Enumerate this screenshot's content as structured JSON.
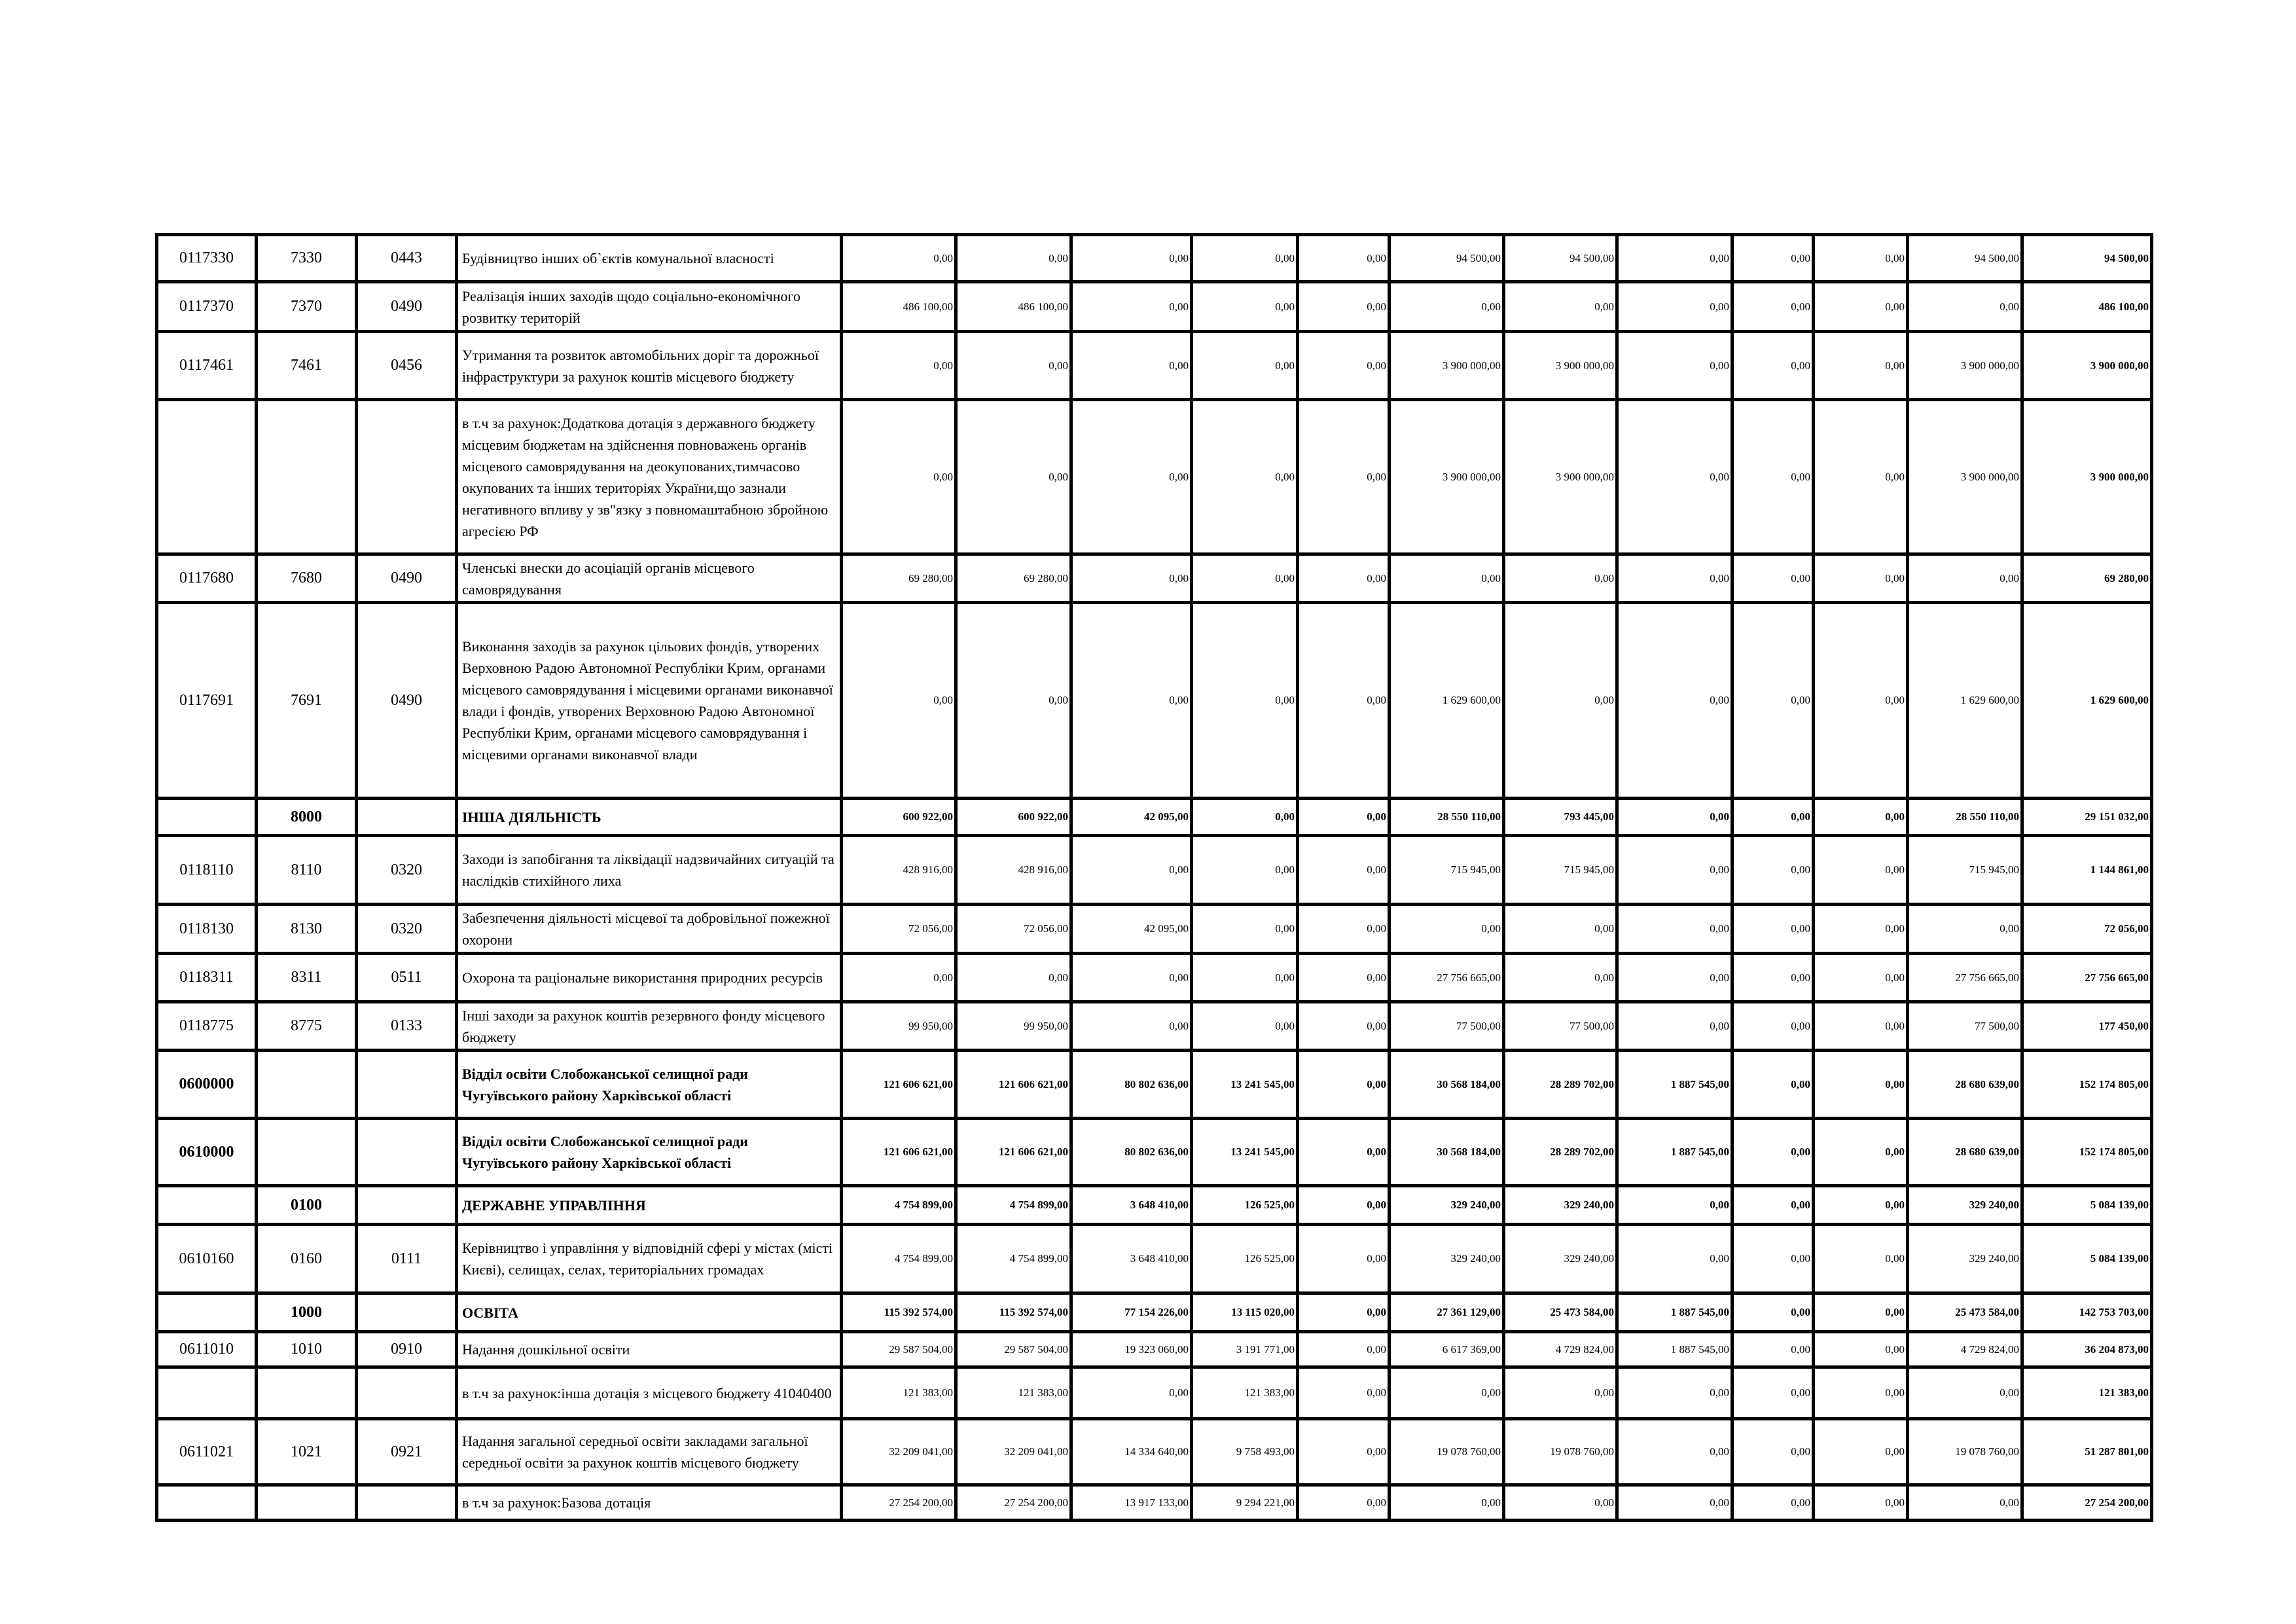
{
  "table": {
    "rows": [
      {
        "bold": false,
        "cells": [
          "0117330",
          "7330",
          "0443",
          "Будівництво інших об`єктів комунальної власності",
          "0,00",
          "0,00",
          "0,00",
          "0,00",
          "0,00",
          "94 500,00",
          "94 500,00",
          "0,00",
          "0,00",
          "0,00",
          "94 500,00",
          "94 500,00"
        ]
      },
      {
        "bold": false,
        "cells": [
          "0117370",
          "7370",
          "0490",
          "Реалізація інших заходів щодо соціально-економічного розвитку територій",
          "486 100,00",
          "486 100,00",
          "0,00",
          "0,00",
          "0,00",
          "0,00",
          "0,00",
          "0,00",
          "0,00",
          "0,00",
          "0,00",
          "486 100,00"
        ]
      },
      {
        "bold": false,
        "cells": [
          "0117461",
          "7461",
          "0456",
          "Утримання та розвиток автомобільних доріг та дорожньої інфраструктури за рахунок коштів місцевого бюджету",
          "0,00",
          "0,00",
          "0,00",
          "0,00",
          "0,00",
          "3 900 000,00",
          "3 900 000,00",
          "0,00",
          "0,00",
          "0,00",
          "3 900 000,00",
          "3 900 000,00"
        ]
      },
      {
        "bold": false,
        "cells": [
          "",
          "",
          "",
          "в т.ч за рахунок:Додаткова дотація з державного бюджету місцевим бюджетам на здійснення повноважень органів місцевого самоврядування на деокупованих,тимчасово окупованих та інших територіях України,що зазнали негативного впливу у зв\"язку з повномаштабною збройною агресією РФ",
          "0,00",
          "0,00",
          "0,00",
          "0,00",
          "0,00",
          "3 900 000,00",
          "3 900 000,00",
          "0,00",
          "0,00",
          "0,00",
          "3 900 000,00",
          "3 900 000,00"
        ]
      },
      {
        "bold": false,
        "cells": [
          "0117680",
          "7680",
          "0490",
          "Членські внески до асоціацій органів місцевого самоврядування",
          "69 280,00",
          "69 280,00",
          "0,00",
          "0,00",
          "0,00",
          "0,00",
          "0,00",
          "0,00",
          "0,00",
          "0,00",
          "0,00",
          "69 280,00"
        ]
      },
      {
        "bold": false,
        "cells": [
          "0117691",
          "7691",
          "0490",
          "Виконання заходів за рахунок цільових фондів, утворених Верховною Радою Автономної Республіки Крим, органами місцевого самоврядування і місцевими органами виконавчої влади і фондів, утворених Верховною Радою Автономної Республіки Крим, органами місцевого самоврядування і місцевими органами виконавчої влади",
          "0,00",
          "0,00",
          "0,00",
          "0,00",
          "0,00",
          "1 629 600,00",
          "0,00",
          "0,00",
          "0,00",
          "0,00",
          "1 629 600,00",
          "1 629 600,00"
        ]
      },
      {
        "bold": true,
        "cells": [
          "",
          "8000",
          "",
          "ІНША ДІЯЛЬНІСТЬ",
          "600 922,00",
          "600 922,00",
          "42 095,00",
          "0,00",
          "0,00",
          "28 550 110,00",
          "793 445,00",
          "0,00",
          "0,00",
          "0,00",
          "28 550 110,00",
          "29 151 032,00"
        ]
      },
      {
        "bold": false,
        "cells": [
          "0118110",
          "8110",
          "0320",
          "Заходи із запобігання та ліквідації надзвичайних ситуацій та наслідків стихійного лиха",
          "428 916,00",
          "428 916,00",
          "0,00",
          "0,00",
          "0,00",
          "715 945,00",
          "715 945,00",
          "0,00",
          "0,00",
          "0,00",
          "715 945,00",
          "1 144 861,00"
        ]
      },
      {
        "bold": false,
        "cells": [
          "0118130",
          "8130",
          "0320",
          "Забезпечення діяльності місцевої та добровільної пожежної охорони",
          "72 056,00",
          "72 056,00",
          "42 095,00",
          "0,00",
          "0,00",
          "0,00",
          "0,00",
          "0,00",
          "0,00",
          "0,00",
          "0,00",
          "72 056,00"
        ]
      },
      {
        "bold": false,
        "cells": [
          "0118311",
          "8311",
          "0511",
          "Охорона та раціональне використання природних ресурсів",
          "0,00",
          "0,00",
          "0,00",
          "0,00",
          "0,00",
          "27 756 665,00",
          "0,00",
          "0,00",
          "0,00",
          "0,00",
          "27 756 665,00",
          "27 756 665,00"
        ]
      },
      {
        "bold": false,
        "cells": [
          "0118775",
          "8775",
          "0133",
          "Інші заходи за рахунок коштів резервного фонду місцевого бюджету",
          "99 950,00",
          "99 950,00",
          "0,00",
          "0,00",
          "0,00",
          "77 500,00",
          "77 500,00",
          "0,00",
          "0,00",
          "0,00",
          "77 500,00",
          "177 450,00"
        ]
      },
      {
        "bold": true,
        "cells": [
          "0600000",
          "",
          "",
          "Відділ освіти Слобожанської селищної ради Чугуївського району Харківської області",
          "121 606 621,00",
          "121 606 621,00",
          "80 802 636,00",
          "13 241 545,00",
          "0,00",
          "30 568 184,00",
          "28 289 702,00",
          "1 887 545,00",
          "0,00",
          "0,00",
          "28 680 639,00",
          "152 174 805,00"
        ]
      },
      {
        "bold": true,
        "cells": [
          "0610000",
          "",
          "",
          "Відділ освіти Слобожанської селищної ради Чугуївського району Харківської області",
          "121 606 621,00",
          "121 606 621,00",
          "80 802 636,00",
          "13 241 545,00",
          "0,00",
          "30 568 184,00",
          "28 289 702,00",
          "1 887 545,00",
          "0,00",
          "0,00",
          "28 680 639,00",
          "152 174 805,00"
        ]
      },
      {
        "bold": true,
        "cells": [
          "",
          "0100",
          "",
          "ДЕРЖАВНЕ УПРАВЛІННЯ",
          "4 754 899,00",
          "4 754 899,00",
          "3 648 410,00",
          "126 525,00",
          "0,00",
          "329 240,00",
          "329 240,00",
          "0,00",
          "0,00",
          "0,00",
          "329 240,00",
          "5 084 139,00"
        ]
      },
      {
        "bold": false,
        "cells": [
          "0610160",
          "0160",
          "0111",
          "Керівництво і управління у відповідній сфері у містах (місті Києві), селищах, селах, територіальних громадах",
          "4 754 899,00",
          "4 754 899,00",
          "3 648 410,00",
          "126 525,00",
          "0,00",
          "329 240,00",
          "329 240,00",
          "0,00",
          "0,00",
          "0,00",
          "329 240,00",
          "5 084 139,00"
        ]
      },
      {
        "bold": true,
        "cells": [
          "",
          "1000",
          "",
          "ОСВІТА",
          "115 392 574,00",
          "115 392 574,00",
          "77 154 226,00",
          "13 115 020,00",
          "0,00",
          "27 361 129,00",
          "25 473 584,00",
          "1 887 545,00",
          "0,00",
          "0,00",
          "25 473 584,00",
          "142 753 703,00"
        ]
      },
      {
        "bold": false,
        "cells": [
          "0611010",
          "1010",
          "0910",
          "Надання дошкільної освіти",
          "29 587 504,00",
          "29 587 504,00",
          "19 323 060,00",
          "3 191 771,00",
          "0,00",
          "6 617 369,00",
          "4 729 824,00",
          "1 887 545,00",
          "0,00",
          "0,00",
          "4 729 824,00",
          "36 204 873,00"
        ]
      },
      {
        "bold": false,
        "cells": [
          "",
          "",
          "",
          "в т.ч за рахунок:інша дотація з місцевого бюджету 41040400",
          "121 383,00",
          "121 383,00",
          "0,00",
          "121 383,00",
          "0,00",
          "0,00",
          "0,00",
          "0,00",
          "0,00",
          "0,00",
          "0,00",
          "121 383,00"
        ]
      },
      {
        "bold": false,
        "cells": [
          "0611021",
          "1021",
          "0921",
          "Надання загальної середньої освіти закладами загальної середньої освіти за рахунок коштів місцевого бюджету",
          "32 209 041,00",
          "32 209 041,00",
          "14 334 640,00",
          "9 758 493,00",
          "0,00",
          "19 078 760,00",
          "19 078 760,00",
          "0,00",
          "0,00",
          "0,00",
          "19 078 760,00",
          "51 287 801,00"
        ]
      },
      {
        "bold": false,
        "cells": [
          "",
          "",
          "",
          "в т.ч за рахунок:Базова дотація",
          "27 254 200,00",
          "27 254 200,00",
          "13 917 133,00",
          "9 294 221,00",
          "0,00",
          "0,00",
          "0,00",
          "0,00",
          "0,00",
          "0,00",
          "0,00",
          "27 254 200,00"
        ]
      }
    ]
  }
}
